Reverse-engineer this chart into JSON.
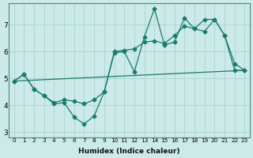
{
  "xlabel": "Humidex (Indice chaleur)",
  "background_color": "#cceae7",
  "grid_color": "#aad4d0",
  "line_color": "#1a7a6e",
  "xlim": [
    -0.5,
    23.5
  ],
  "ylim": [
    2.8,
    7.8
  ],
  "xticks": [
    0,
    1,
    2,
    3,
    4,
    5,
    6,
    7,
    8,
    9,
    10,
    11,
    12,
    13,
    14,
    15,
    16,
    17,
    18,
    19,
    20,
    21,
    22,
    23
  ],
  "yticks": [
    3,
    4,
    5,
    6,
    7
  ],
  "line1_x": [
    0,
    1,
    2,
    3,
    4,
    5,
    6,
    7,
    8,
    9,
    10,
    11,
    12,
    13,
    14,
    15,
    16,
    17,
    18,
    19,
    20,
    21,
    22,
    23
  ],
  "line1_y": [
    4.9,
    5.15,
    4.6,
    4.35,
    4.1,
    4.2,
    4.15,
    4.05,
    4.2,
    4.5,
    6.0,
    6.05,
    6.1,
    6.35,
    6.4,
    6.3,
    6.6,
    6.95,
    6.85,
    6.75,
    7.2,
    6.6,
    5.3,
    5.3
  ],
  "line2_x": [
    0,
    1,
    2,
    3,
    4,
    5,
    6,
    7,
    8,
    9,
    10,
    11,
    12,
    13,
    14,
    15,
    16,
    17,
    18,
    19,
    20,
    21,
    22,
    23
  ],
  "line2_y": [
    4.9,
    5.15,
    4.6,
    4.35,
    4.05,
    4.1,
    3.55,
    3.3,
    3.6,
    4.5,
    5.95,
    6.0,
    5.25,
    6.55,
    7.6,
    6.25,
    6.35,
    7.25,
    6.85,
    7.2,
    7.2,
    6.6,
    5.55,
    5.3
  ],
  "line3_x": [
    0,
    23
  ],
  "line3_y": [
    4.9,
    5.3
  ]
}
